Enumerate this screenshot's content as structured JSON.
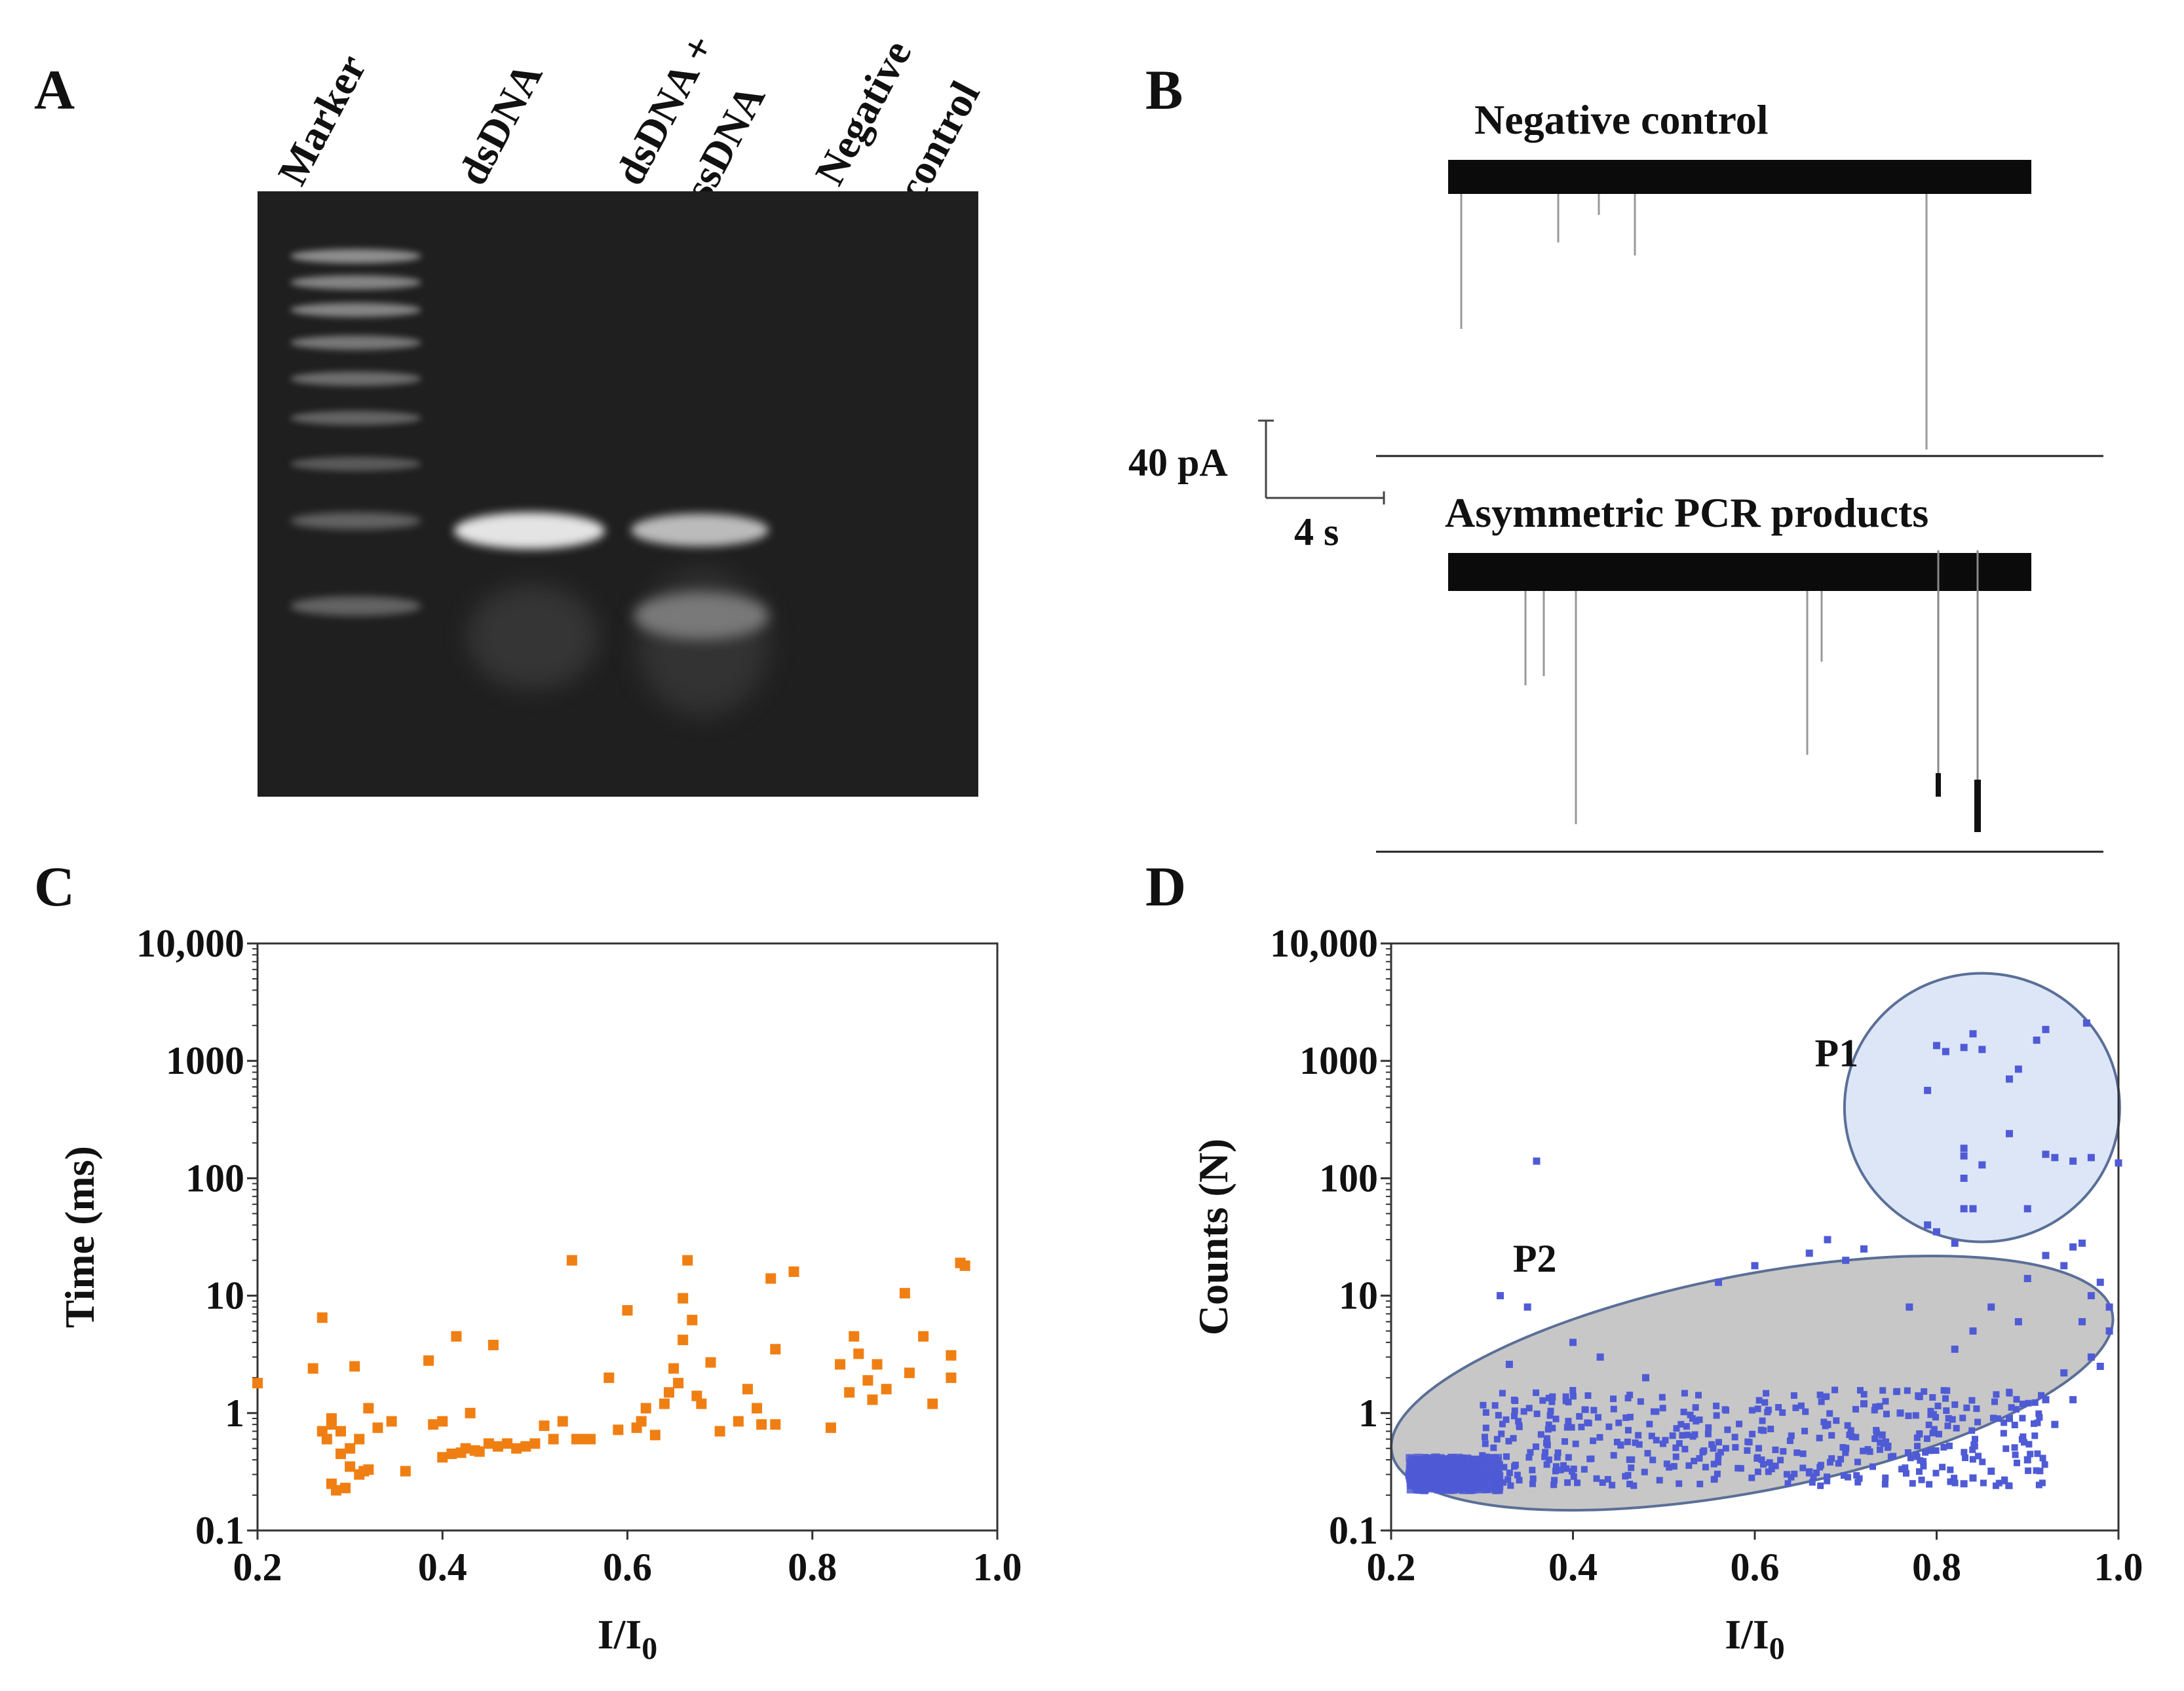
{
  "panels": {
    "a": {
      "letter": "A",
      "lanes": [
        "Marker",
        "dsDNA",
        "dsDNA +",
        "ssDNA",
        "Negative",
        "control"
      ]
    },
    "b": {
      "letter": "B",
      "trace_top_title": "Negative control",
      "trace_bottom_title": "Asymmetric PCR products",
      "scale_current": "40 pA",
      "scale_time": "4 s"
    },
    "c": {
      "letter": "C"
    },
    "d": {
      "letter": "D",
      "cluster_labels": [
        "P1",
        "P2"
      ]
    }
  },
  "colors": {
    "orange_points": "#f07f13",
    "blue_points": "#4f5bd5",
    "p1_fill": "#dde6f7",
    "p2_fill": "#c7c7c7",
    "ellipse_stroke": "#5a6f98",
    "gel_bg": "#1f1f1f"
  },
  "chart_data": [
    {
      "type": "scatter",
      "panel": "C",
      "xlabel": "I/I0",
      "ylabel": "Time (ms)",
      "xlim": [
        0.2,
        1.0
      ],
      "ylim": [
        0.1,
        10000
      ],
      "yscale": "log",
      "xticks": [
        "0.2",
        "0.4",
        "0.6",
        "0.8",
        "1.0"
      ],
      "yticks": [
        "0.1",
        "1",
        "10",
        "100",
        "1000",
        "10,000"
      ],
      "points": [
        [
          0.2,
          1.8
        ],
        [
          0.26,
          2.4
        ],
        [
          0.27,
          6.5
        ],
        [
          0.27,
          0.7
        ],
        [
          0.275,
          0.6
        ],
        [
          0.28,
          0.8
        ],
        [
          0.28,
          0.9
        ],
        [
          0.28,
          0.25
        ],
        [
          0.285,
          0.22
        ],
        [
          0.29,
          0.7
        ],
        [
          0.29,
          0.45
        ],
        [
          0.295,
          0.23
        ],
        [
          0.3,
          0.5
        ],
        [
          0.3,
          0.35
        ],
        [
          0.305,
          2.5
        ],
        [
          0.31,
          0.6
        ],
        [
          0.31,
          0.3
        ],
        [
          0.315,
          0.32
        ],
        [
          0.32,
          0.33
        ],
        [
          0.32,
          1.1
        ],
        [
          0.33,
          0.75
        ],
        [
          0.345,
          0.85
        ],
        [
          0.36,
          0.32
        ],
        [
          0.385,
          2.8
        ],
        [
          0.39,
          0.8
        ],
        [
          0.4,
          0.42
        ],
        [
          0.4,
          0.85
        ],
        [
          0.41,
          0.45
        ],
        [
          0.415,
          4.5
        ],
        [
          0.42,
          0.46
        ],
        [
          0.425,
          0.5
        ],
        [
          0.43,
          1.0
        ],
        [
          0.435,
          0.48
        ],
        [
          0.44,
          0.47
        ],
        [
          0.45,
          0.55
        ],
        [
          0.455,
          3.8
        ],
        [
          0.46,
          0.52
        ],
        [
          0.47,
          0.55
        ],
        [
          0.48,
          0.5
        ],
        [
          0.49,
          0.52
        ],
        [
          0.5,
          0.55
        ],
        [
          0.51,
          0.78
        ],
        [
          0.52,
          0.6
        ],
        [
          0.53,
          0.85
        ],
        [
          0.54,
          20
        ],
        [
          0.545,
          0.6
        ],
        [
          0.55,
          0.6
        ],
        [
          0.56,
          0.6
        ],
        [
          0.58,
          2.0
        ],
        [
          0.59,
          0.72
        ],
        [
          0.6,
          7.5
        ],
        [
          0.61,
          0.75
        ],
        [
          0.615,
          0.85
        ],
        [
          0.62,
          1.1
        ],
        [
          0.63,
          0.65
        ],
        [
          0.64,
          1.2
        ],
        [
          0.645,
          1.5
        ],
        [
          0.65,
          2.4
        ],
        [
          0.655,
          1.8
        ],
        [
          0.66,
          9.5
        ],
        [
          0.66,
          4.2
        ],
        [
          0.665,
          20
        ],
        [
          0.67,
          6.2
        ],
        [
          0.675,
          1.4
        ],
        [
          0.68,
          1.2
        ],
        [
          0.69,
          2.7
        ],
        [
          0.7,
          0.7
        ],
        [
          0.72,
          0.85
        ],
        [
          0.73,
          1.6
        ],
        [
          0.74,
          1.1
        ],
        [
          0.745,
          0.8
        ],
        [
          0.755,
          14
        ],
        [
          0.76,
          3.5
        ],
        [
          0.76,
          0.8
        ],
        [
          0.78,
          16
        ],
        [
          0.82,
          0.75
        ],
        [
          0.83,
          2.6
        ],
        [
          0.84,
          1.5
        ],
        [
          0.845,
          4.5
        ],
        [
          0.85,
          3.2
        ],
        [
          0.86,
          1.9
        ],
        [
          0.865,
          1.3
        ],
        [
          0.87,
          2.6
        ],
        [
          0.88,
          1.6
        ],
        [
          0.9,
          10.5
        ],
        [
          0.905,
          2.2
        ],
        [
          0.92,
          4.5
        ],
        [
          0.93,
          1.2
        ],
        [
          0.95,
          3.1
        ],
        [
          0.95,
          2.0
        ],
        [
          0.96,
          19
        ],
        [
          0.965,
          18
        ]
      ]
    },
    {
      "type": "scatter",
      "panel": "D",
      "xlabel": "I/I0",
      "ylabel": "Counts (N)",
      "xlim": [
        0.2,
        1.0
      ],
      "ylim": [
        0.1,
        10000
      ],
      "yscale": "log",
      "xticks": [
        "0.2",
        "0.4",
        "0.6",
        "0.8",
        "1.0"
      ],
      "yticks": [
        "0.1",
        "1",
        "10",
        "100",
        "1000",
        "10,000"
      ],
      "points": [
        [
          0.36,
          140
        ],
        [
          0.32,
          10
        ],
        [
          0.35,
          8
        ],
        [
          0.33,
          2.6
        ],
        [
          0.4,
          4
        ],
        [
          0.43,
          3
        ],
        [
          0.48,
          2
        ],
        [
          0.56,
          13
        ],
        [
          0.6,
          18
        ],
        [
          0.66,
          23
        ],
        [
          0.68,
          30
        ],
        [
          0.7,
          20
        ],
        [
          0.72,
          25
        ],
        [
          0.77,
          8
        ],
        [
          0.79,
          40
        ],
        [
          0.8,
          35
        ],
        [
          0.82,
          28
        ],
        [
          0.86,
          8
        ],
        [
          0.9,
          14
        ],
        [
          0.92,
          22
        ],
        [
          0.94,
          18
        ],
        [
          0.95,
          26
        ],
        [
          0.96,
          28
        ],
        [
          0.97,
          10
        ],
        [
          0.98,
          13
        ],
        [
          0.99,
          8
        ],
        [
          0.79,
          560
        ],
        [
          0.8,
          1350
        ],
        [
          0.81,
          1200
        ],
        [
          0.83,
          1300
        ],
        [
          0.84,
          1700
        ],
        [
          0.85,
          1250
        ],
        [
          0.88,
          700
        ],
        [
          0.89,
          850
        ],
        [
          0.91,
          1500
        ],
        [
          0.92,
          1850
        ],
        [
          0.965,
          2100
        ],
        [
          0.83,
          180
        ],
        [
          0.83,
          155
        ],
        [
          0.83,
          100
        ],
        [
          0.85,
          130
        ],
        [
          0.88,
          240
        ],
        [
          0.84,
          55
        ],
        [
          0.83,
          55
        ],
        [
          0.9,
          55
        ],
        [
          0.92,
          160
        ],
        [
          0.93,
          150
        ],
        [
          0.97,
          150
        ],
        [
          1.0,
          135
        ],
        [
          0.95,
          140
        ],
        [
          0.96,
          6
        ],
        [
          0.94,
          2.2
        ],
        [
          0.95,
          1.3
        ],
        [
          0.93,
          0.8
        ],
        [
          0.9,
          0.4
        ],
        [
          0.86,
          0.32
        ],
        [
          0.83,
          0.25
        ],
        [
          0.84,
          0.28
        ],
        [
          0.88,
          0.9
        ],
        [
          0.92,
          1.3
        ],
        [
          0.97,
          3
        ],
        [
          0.98,
          2.5
        ],
        [
          0.99,
          5
        ],
        [
          0.89,
          6
        ],
        [
          0.84,
          5
        ],
        [
          0.82,
          3.5
        ],
        [
          0.78,
          1.4
        ],
        [
          0.76,
          1.0
        ],
        [
          0.74,
          0.65
        ],
        [
          0.72,
          1.2
        ],
        [
          0.7,
          0.5
        ],
        [
          0.68,
          0.8
        ]
      ]
    }
  ]
}
